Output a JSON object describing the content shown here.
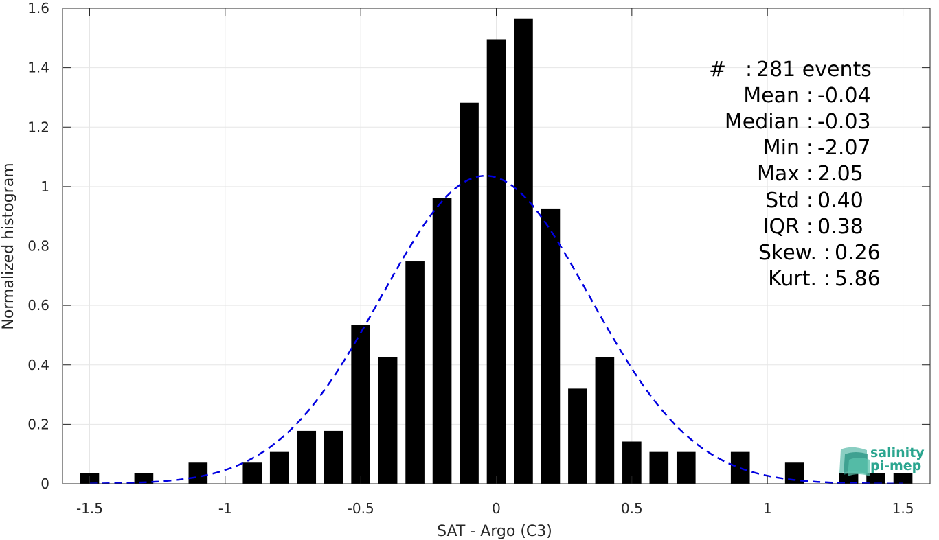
{
  "chart_data": {
    "type": "bar",
    "xlabel": "SAT - Argo (C3)",
    "ylabel": "Normalized histogram",
    "xlim": [
      -1.6,
      1.6
    ],
    "ylim": [
      0,
      1.6
    ],
    "xticks": [
      -1.5,
      -1,
      -0.5,
      0,
      0.5,
      1,
      1.5
    ],
    "xtick_labels": [
      "-1.5",
      "-1",
      "-0.5",
      "0",
      "0.5",
      "1",
      "1.5"
    ],
    "yticks": [
      0,
      0.2,
      0.4,
      0.6,
      0.8,
      1,
      1.2,
      1.4,
      1.6
    ],
    "ytick_labels": [
      "0",
      "0.2",
      "0.4",
      "0.6",
      "0.8",
      "1",
      "1.2",
      "1.4",
      "1.6"
    ],
    "grid": true,
    "bar_width": 0.07,
    "series": [
      {
        "style": "bar",
        "color": "#000000",
        "x": [
          -1.5,
          -1.3,
          -1.1,
          -0.9,
          -0.8,
          -0.7,
          -0.6,
          -0.5,
          -0.4,
          -0.3,
          -0.2,
          -0.1,
          0.0,
          0.1,
          0.2,
          0.3,
          0.4,
          0.5,
          0.6,
          0.7,
          0.9,
          1.1,
          1.3,
          1.4,
          1.5
        ],
        "values": [
          0.035,
          0.035,
          0.071,
          0.071,
          0.107,
          0.178,
          0.178,
          0.534,
          0.427,
          0.748,
          0.961,
          1.282,
          1.495,
          1.566,
          0.926,
          0.32,
          0.427,
          0.142,
          0.107,
          0.107,
          0.107,
          0.071,
          0.035,
          0.035,
          0.035
        ]
      },
      {
        "style": "dashed-line",
        "color": "#0000e0",
        "fit": "normal",
        "mean": -0.04,
        "std": 0.385,
        "x_range": [
          -1.5,
          1.5
        ]
      }
    ],
    "stats": [
      {
        "label": "#  ",
        "value": "281 events"
      },
      {
        "label": "Mean",
        "value": "-0.04"
      },
      {
        "label": "Median",
        "value": "-0.03"
      },
      {
        "label": "Min",
        "value": "-2.07"
      },
      {
        "label": "Max",
        "value": "2.05"
      },
      {
        "label": "Std",
        "value": "0.40"
      },
      {
        "label": "IQR",
        "value": "0.38"
      },
      {
        "label": "Skew.",
        "value": "0.26"
      },
      {
        "label": "Kurt.",
        "value": "5.86"
      }
    ]
  },
  "logo": {
    "line1": "salinity",
    "line2": "pi-mep",
    "color": "#2aa58f"
  }
}
